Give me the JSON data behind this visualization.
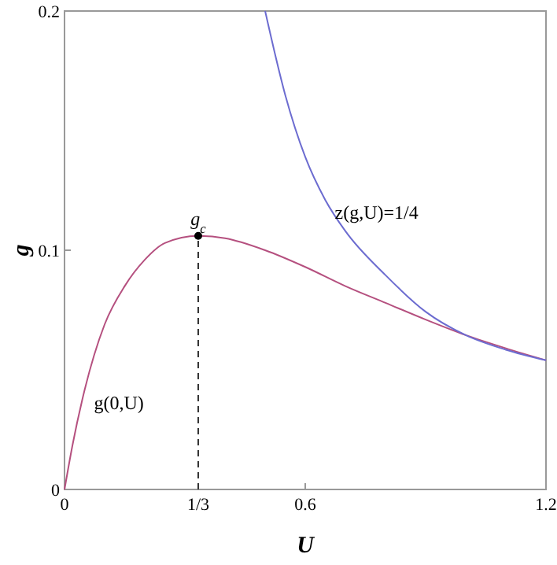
{
  "chart_data": {
    "type": "line",
    "xlabel": "U",
    "ylabel": "g",
    "xlim": [
      0,
      1.2
    ],
    "ylim": [
      0,
      0.2
    ],
    "xticks": [
      0,
      {
        "value": 0.3333,
        "label": "1/3"
      },
      0.6,
      1.2
    ],
    "yticks": [
      0,
      0.1,
      0.2
    ],
    "grid": false,
    "marker": "none",
    "line_style": "solid",
    "series": [
      {
        "name": "g(0,U)",
        "color": "#b5507f",
        "x": [
          0,
          0.02,
          0.05,
          0.1,
          0.15,
          0.2,
          0.25,
          0.3333,
          0.4,
          0.5,
          0.6,
          0.7,
          0.8,
          0.9,
          1.0,
          1.1,
          1.2
        ],
        "values": [
          0,
          0.0186,
          0.0415,
          0.069,
          0.085,
          0.096,
          0.103,
          0.106,
          0.105,
          0.1,
          0.093,
          0.085,
          0.078,
          0.071,
          0.0645,
          0.059,
          0.054
        ]
      },
      {
        "name": "z(g,U)=1/4",
        "color": "#6c6cd0",
        "x": [
          0.5,
          0.55,
          0.6,
          0.65,
          0.7,
          0.8,
          0.9,
          1.0,
          1.1,
          1.2
        ],
        "values": [
          0.2,
          0.165,
          0.139,
          0.121,
          0.108,
          0.0896,
          0.0743,
          0.0645,
          0.0584,
          0.054
        ]
      },
      {
        "type": "line",
        "line_style": "dashed",
        "color": "#333333",
        "x": [
          0.3333,
          0.3333
        ],
        "values": [
          0,
          0.106
        ]
      },
      {
        "type": "scatter",
        "marker": "circle",
        "color": "#000000",
        "x": [
          0.3333
        ],
        "values": [
          0.106
        ]
      }
    ],
    "annotations": [
      {
        "text": "g$_{c}$",
        "x": 0.3333,
        "y": 0.106
      }
    ]
  }
}
